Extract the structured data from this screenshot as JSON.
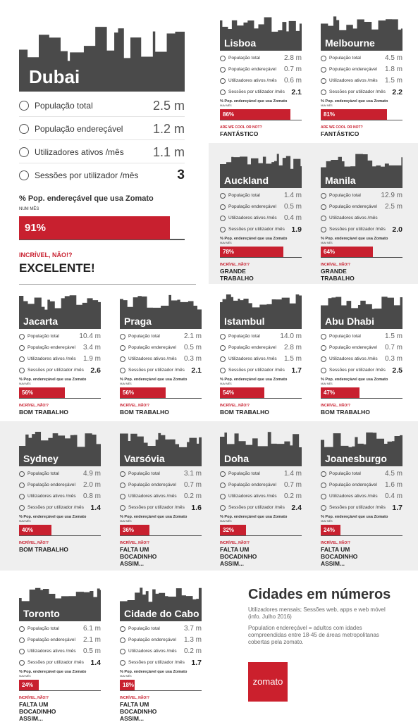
{
  "labels": {
    "population": "População total",
    "addressable": "População endereçável",
    "active": "Utilizadores ativos /mês",
    "sessions": "Sessões por utilizador /mês",
    "share": "% Pop. endereçável que usa Zomato",
    "month": "NUM MÊS"
  },
  "cities": [
    {
      "name": "Dubai",
      "population": "2.5 m",
      "addressable": "1.2 m",
      "active": "1.1 m",
      "sessions": "3",
      "share": {
        "value": 91,
        "label": "91%"
      },
      "tagline": "INCRÍVEL, NÃO!?",
      "verdict": "EXCELENTE!"
    },
    {
      "name": "Lisboa",
      "population": "2.8 m",
      "addressable": "0.7 m",
      "active": "0.6 m",
      "sessions": "2.1",
      "share": {
        "value": 86,
        "label": "86%"
      },
      "tagline": "ARE WE COOL OR NOT?",
      "verdict": "FANTÁSTICO"
    },
    {
      "name": "Melbourne",
      "population": "4.5 m",
      "addressable": "1.8 m",
      "active": "1.5 m",
      "sessions": "2.2",
      "share": {
        "value": 81,
        "label": "81%"
      },
      "tagline": "ARE WE COOL OR NOT?",
      "verdict": "FANTÁSTICO"
    },
    {
      "name": "Auckland",
      "population": "1.4 m",
      "addressable": "0.5 m",
      "active": "0.4 m",
      "sessions": "1.9",
      "share": {
        "value": 78,
        "label": "78%"
      },
      "tagline": "INCRÍVEL, NÃO!?",
      "verdict": "GRANDE TRABALHO"
    },
    {
      "name": "Manila",
      "population": "12.9 m",
      "addressable": "2.5 m",
      "active": null,
      "sessions": "2.0",
      "share": {
        "value": 64,
        "label": "64%"
      },
      "tagline": "INCRÍVEL, NÃO!?",
      "verdict": "GRANDE TRABALHO"
    },
    {
      "name": "Jacarta",
      "population": "10.4 m",
      "addressable": "3.4 m",
      "active": "1.9 m",
      "sessions": "2.6",
      "share": {
        "value": 56,
        "label": "56%"
      },
      "tagline": "INCRÍVEL, NÃO!?",
      "verdict": "BOM TRABALHO"
    },
    {
      "name": "Praga",
      "population": "2.1 m",
      "addressable": "0.5 m",
      "active": "0.3 m",
      "sessions": "2.1",
      "share": {
        "value": 56,
        "label": "56%"
      },
      "tagline": "INCRÍVEL, NÃO!?",
      "verdict": "BOM TRABALHO"
    },
    {
      "name": "Istambul",
      "population": "14.0 m",
      "addressable": "2.8 m",
      "active": "1.5 m",
      "sessions": "1.7",
      "share": {
        "value": 54,
        "label": "54%"
      },
      "tagline": "INCRÍVEL, NÃO!?",
      "verdict": "BOM TRABALHO"
    },
    {
      "name": "Abu Dhabi",
      "population": "1.5 m",
      "addressable": "0.7 m",
      "active": "0.3 m",
      "sessions": "2.5",
      "share": {
        "value": 47,
        "label": "47%"
      },
      "tagline": "INCRÍVEL, NÃO!?",
      "verdict": "BOM TRABALHO"
    },
    {
      "name": "Sydney",
      "population": "4.9 m",
      "addressable": "2.0 m",
      "active": "0.8 m",
      "sessions": "1.4",
      "share": {
        "value": 40,
        "label": "40%"
      },
      "tagline": "INCRÍVEL, NÃO!?",
      "verdict": "BOM TRABALHO"
    },
    {
      "name": "Varsóvia",
      "population": "3.1 m",
      "addressable": "0.7 m",
      "active": "0.2 m",
      "sessions": "1.6",
      "share": {
        "value": 36,
        "label": "36%"
      },
      "tagline": "INCRÍVEL, NÃO!?",
      "verdict": "FALTA UM BOCADINHO ASSIM..."
    },
    {
      "name": "Doha",
      "population": "1.4 m",
      "addressable": "0.7 m",
      "active": "0.2 m",
      "sessions": "2.4",
      "share": {
        "value": 32,
        "label": "32%"
      },
      "tagline": "INCRÍVEL, NÃO!?",
      "verdict": "FALTA UM BOCADINHO ASSIM..."
    },
    {
      "name": "Joanesburgo",
      "population": "4.5 m",
      "addressable": "1.6 m",
      "active": "0.4 m",
      "sessions": "1.7",
      "share": {
        "value": 24,
        "label": "24%"
      },
      "tagline": "INCRÍVEL, NÃO!?",
      "verdict": "FALTA UM BOCADINHO ASSIM..."
    },
    {
      "name": "Toronto",
      "population": "6.1 m",
      "addressable": "2.1 m",
      "active": "0.5 m",
      "sessions": "1.4",
      "share": {
        "value": 24,
        "label": "24%"
      },
      "tagline": "INCRÍVEL, NÃO!?",
      "verdict": "FALTA UM BOCADINHO ASSIM..."
    },
    {
      "name": "Cidade do Cabo",
      "population": "3.7 m",
      "addressable": "1.3 m",
      "active": "0.2 m",
      "sessions": "1.7",
      "share": {
        "value": 18,
        "label": "18%"
      },
      "tagline": "INCRÍVEL, NÃO!?",
      "verdict": "FALTA UM BOCADINHO ASSIM..."
    }
  ],
  "info": {
    "title": "Cidades em números",
    "subtitle": "Utilizadores mensais; Sessões web, apps e web móvel (info. Julho 2016)",
    "note": "Population endereçável = adultos com idades compreendidas entre 18-45 de áreas metropolitanas cobertas pela zomato.",
    "logo": "zomato"
  }
}
